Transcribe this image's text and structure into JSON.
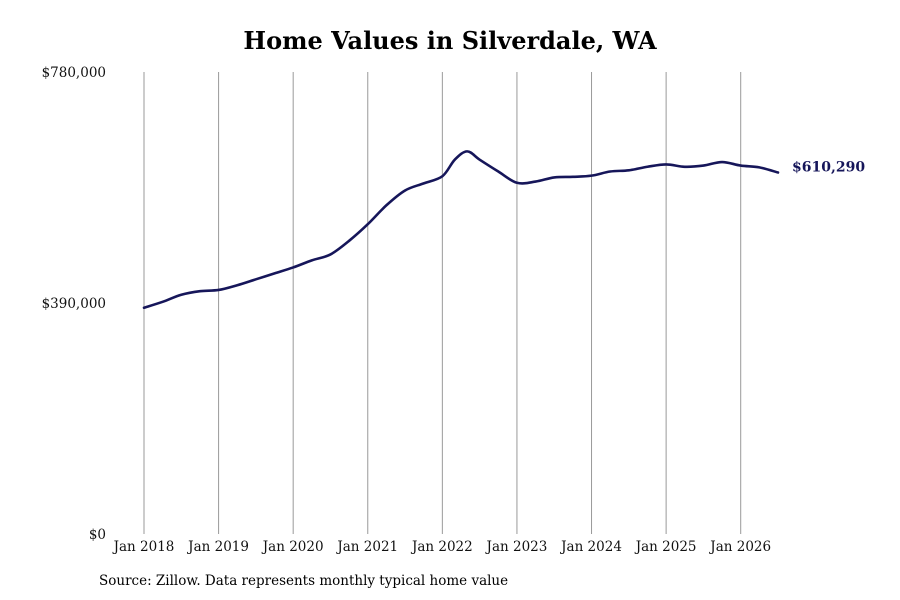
{
  "chart_data": {
    "type": "line",
    "title": "Home Values in Silverdale, WA",
    "xlabel": "",
    "ylabel": "",
    "ylim": [
      0,
      780000
    ],
    "xlim": [
      "2018-01",
      "2026-07"
    ],
    "y_ticks": [
      {
        "value": 0,
        "label": "$0"
      },
      {
        "value": 390000,
        "label": "$390,000"
      },
      {
        "value": 780000,
        "label": "$780,000"
      }
    ],
    "x_ticks": [
      {
        "date": "2018-01",
        "label": "Jan 2018"
      },
      {
        "date": "2019-01",
        "label": "Jan 2019"
      },
      {
        "date": "2020-01",
        "label": "Jan 2020"
      },
      {
        "date": "2021-01",
        "label": "Jan 2021"
      },
      {
        "date": "2022-01",
        "label": "Jan 2022"
      },
      {
        "date": "2023-01",
        "label": "Jan 2023"
      },
      {
        "date": "2024-01",
        "label": "Jan 2024"
      },
      {
        "date": "2025-01",
        "label": "Jan 2025"
      },
      {
        "date": "2026-01",
        "label": "Jan 2026"
      }
    ],
    "grid": {
      "vertical": true,
      "horizontal": false
    },
    "line_color": "#16165a",
    "grid_color": "#9a9a9a",
    "end_label": "$610,290",
    "series": [
      {
        "x": [
          "2018-01",
          "2018-04",
          "2018-07",
          "2018-10",
          "2019-01",
          "2019-04",
          "2019-07",
          "2019-10",
          "2020-01",
          "2020-04",
          "2020-07",
          "2020-10",
          "2021-01",
          "2021-04",
          "2021-07",
          "2021-10",
          "2022-01",
          "2022-03",
          "2022-05",
          "2022-07",
          "2022-10",
          "2023-01",
          "2023-04",
          "2023-07",
          "2023-10",
          "2024-01",
          "2024-04",
          "2024-07",
          "2024-10",
          "2025-01",
          "2025-04",
          "2025-07",
          "2025-10",
          "2026-01",
          "2026-04",
          "2026-07"
        ],
        "values": [
          382000,
          392000,
          404000,
          410000,
          412000,
          420000,
          430000,
          440000,
          450000,
          462000,
          472000,
          495000,
          523000,
          555000,
          580000,
          592000,
          604000,
          632000,
          646000,
          632000,
          612000,
          593000,
          595000,
          602000,
          603000,
          605000,
          612000,
          614000,
          620000,
          624000,
          620000,
          622000,
          628000,
          622000,
          619000,
          610290
        ]
      }
    ]
  },
  "source_note": "Source: Zillow. Data represents monthly typical home value"
}
